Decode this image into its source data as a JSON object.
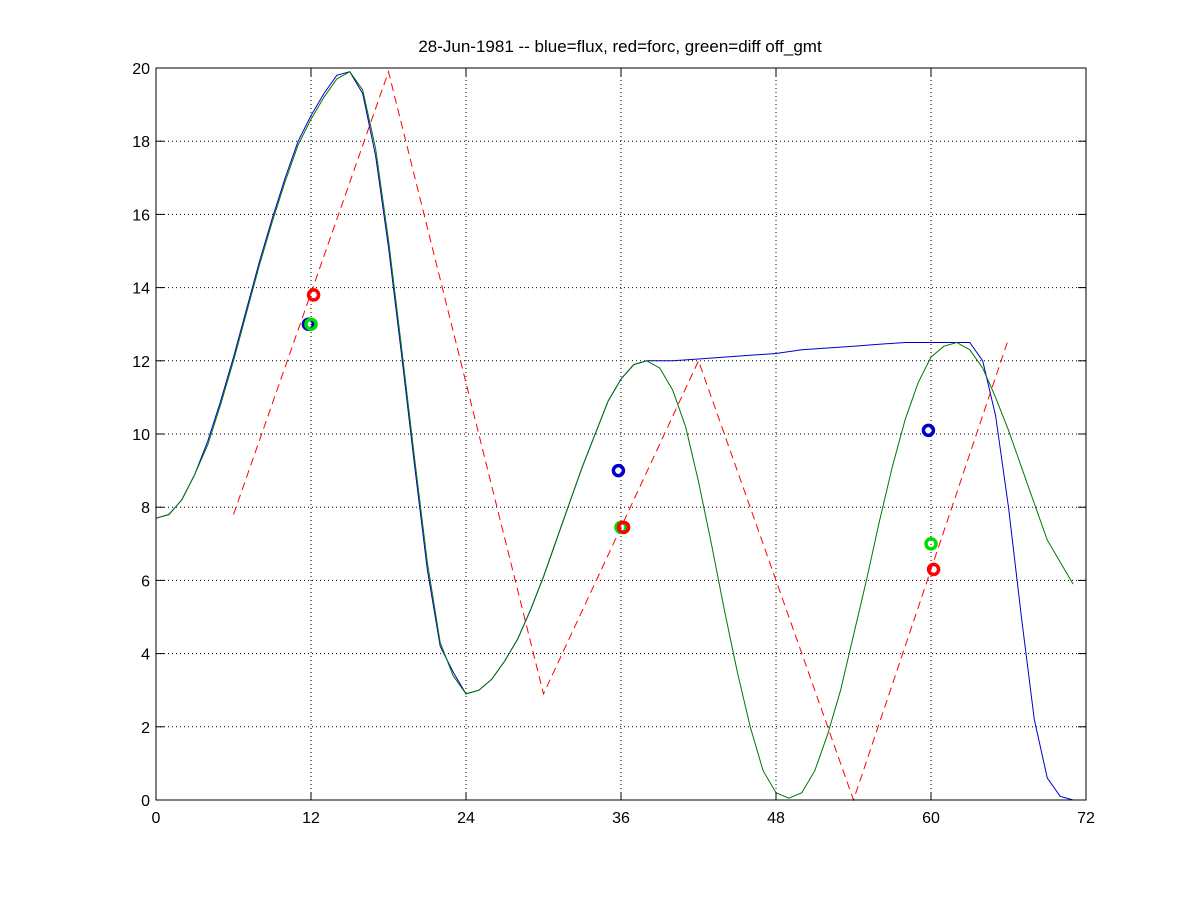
{
  "chart_data": {
    "type": "line",
    "title": "28-Jun-1981 -- blue=flux, red=forc, green=diff off_gmt",
    "xlabel": "",
    "ylabel": "",
    "xlim": [
      0,
      72
    ],
    "ylim": [
      0,
      20
    ],
    "xticks": [
      0,
      12,
      24,
      36,
      48,
      60,
      72
    ],
    "yticks": [
      0,
      2,
      4,
      6,
      8,
      10,
      12,
      14,
      16,
      18,
      20
    ],
    "xtick_labels": [
      "0",
      "12",
      "24",
      "36",
      "48",
      "60",
      "72"
    ],
    "ytick_labels": [
      "0",
      "2",
      "4",
      "6",
      "8",
      "10",
      "12",
      "14",
      "16",
      "18",
      "20"
    ],
    "grid": true,
    "legend": "none",
    "series": [
      {
        "color": "#0000cc",
        "style": "solid",
        "x": [
          0,
          1,
          2,
          3,
          4,
          5,
          6,
          7,
          8,
          9,
          10,
          11,
          12,
          13,
          14,
          15,
          16,
          17,
          18,
          19,
          20,
          21,
          22,
          23,
          24,
          25,
          26,
          27,
          28,
          29,
          30,
          31,
          32,
          33,
          34,
          35,
          36,
          37,
          38,
          39,
          40,
          42,
          44,
          46,
          48,
          50,
          52,
          54,
          56,
          58,
          60,
          61,
          62,
          63,
          64,
          65,
          66,
          67,
          68,
          69,
          70,
          71
        ],
        "y": [
          7.7,
          7.8,
          8.2,
          8.9,
          9.8,
          10.9,
          12.1,
          13.4,
          14.7,
          15.9,
          17.0,
          18.0,
          18.7,
          19.3,
          19.8,
          19.9,
          19.3,
          17.6,
          15.1,
          12.2,
          9.2,
          6.3,
          4.2,
          3.5,
          2.9,
          3.0,
          3.3,
          3.8,
          4.4,
          5.2,
          6.1,
          7.1,
          8.1,
          9.1,
          10.0,
          10.9,
          11.5,
          11.9,
          12.0,
          12.0,
          12.0,
          12.05,
          12.1,
          12.15,
          12.2,
          12.3,
          12.35,
          12.4,
          12.45,
          12.5,
          12.5,
          12.5,
          12.5,
          12.5,
          12.0,
          10.5,
          8.0,
          5.0,
          2.2,
          0.6,
          0.1,
          0.0
        ]
      },
      {
        "color": "#ff0000",
        "style": "dashed",
        "x": [
          6,
          18,
          30,
          42,
          54,
          66
        ],
        "y": [
          7.8,
          19.9,
          2.9,
          12.0,
          0.0,
          12.6
        ]
      },
      {
        "color": "#007700",
        "style": "solid",
        "x": [
          0,
          1,
          2,
          3,
          4,
          5,
          6,
          7,
          8,
          9,
          10,
          11,
          12,
          13,
          14,
          15,
          16,
          17,
          18,
          19,
          20,
          21,
          22,
          23,
          24,
          25,
          26,
          27,
          28,
          29,
          30,
          31,
          32,
          33,
          34,
          35,
          36,
          37,
          38,
          39,
          40,
          41,
          42,
          43,
          44,
          45,
          46,
          47,
          48,
          49,
          50,
          51,
          52,
          53,
          54,
          55,
          56,
          57,
          58,
          59,
          60,
          61,
          62,
          63,
          64,
          65,
          66,
          67,
          68,
          69,
          70,
          71
        ],
        "y": [
          7.7,
          7.8,
          8.2,
          8.9,
          9.7,
          10.8,
          12.0,
          13.3,
          14.6,
          15.8,
          16.9,
          17.9,
          18.6,
          19.2,
          19.7,
          19.9,
          19.4,
          17.8,
          15.3,
          12.4,
          9.4,
          6.5,
          4.3,
          3.4,
          2.9,
          3.0,
          3.3,
          3.8,
          4.4,
          5.2,
          6.1,
          7.1,
          8.1,
          9.1,
          10.0,
          10.9,
          11.5,
          11.9,
          12.0,
          11.8,
          11.2,
          10.2,
          8.7,
          7.0,
          5.2,
          3.5,
          2.0,
          0.8,
          0.2,
          0.05,
          0.2,
          0.8,
          1.8,
          3.0,
          4.5,
          6.0,
          7.6,
          9.1,
          10.4,
          11.4,
          12.1,
          12.4,
          12.5,
          12.3,
          11.8,
          11.0,
          10.1,
          9.1,
          8.1,
          7.1,
          6.5,
          5.9
        ]
      }
    ],
    "markers": [
      {
        "color": "#0000cc",
        "x": 11.8,
        "y": 13.0
      },
      {
        "color": "#00dd00",
        "x": 12.0,
        "y": 13.0
      },
      {
        "color": "#ff0000",
        "x": 12.2,
        "y": 13.8
      },
      {
        "color": "#0000cc",
        "x": 35.8,
        "y": 9.0
      },
      {
        "color": "#00dd00",
        "x": 36.0,
        "y": 7.45
      },
      {
        "color": "#ff0000",
        "x": 36.2,
        "y": 7.45
      },
      {
        "color": "#0000cc",
        "x": 59.8,
        "y": 10.1
      },
      {
        "color": "#00dd00",
        "x": 60.0,
        "y": 7.0
      },
      {
        "color": "#ff0000",
        "x": 60.2,
        "y": 6.3
      }
    ]
  }
}
